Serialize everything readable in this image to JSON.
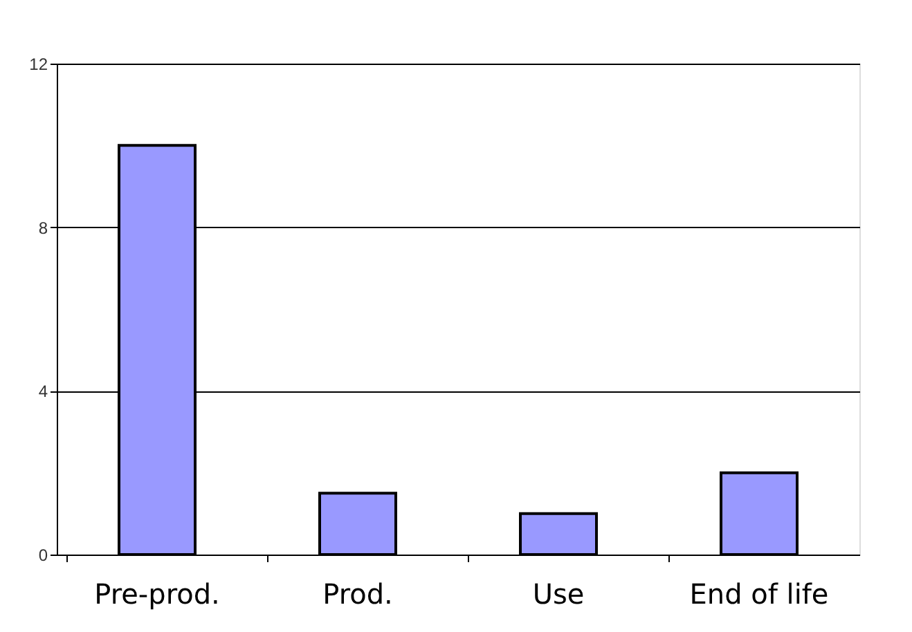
{
  "chart_data": {
    "type": "bar",
    "categories": [
      "Pre-prod.",
      "Prod.",
      "Use",
      "End of life"
    ],
    "values": [
      10,
      1.5,
      1,
      2
    ],
    "color": "#9999ff",
    "ylim": [
      0,
      12
    ],
    "yticks": [
      0,
      4,
      8,
      12
    ],
    "grid": "y"
  }
}
